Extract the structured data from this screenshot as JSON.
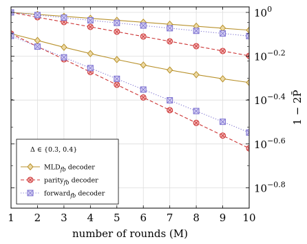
{
  "chart_data": {
    "type": "line",
    "x": [
      1,
      2,
      3,
      4,
      5,
      6,
      7,
      8,
      9,
      10
    ],
    "xlabel": "number of rounds (M)",
    "ylabel": "1 − 2P̄",
    "xlim": [
      1,
      10
    ],
    "ylim_log10": [
      -0.9,
      0.0
    ],
    "y_scale": "log10",
    "x_ticks": [
      "1",
      "2",
      "3",
      "4",
      "5",
      "6",
      "7",
      "8",
      "9",
      "10"
    ],
    "y_ticks": [
      {
        "exp": 0,
        "base": "10",
        "sup": "0"
      },
      {
        "exp": -0.2,
        "base": "10",
        "sup": "−0.2"
      },
      {
        "exp": -0.4,
        "base": "10",
        "sup": "−0.4"
      },
      {
        "exp": -0.6,
        "base": "10",
        "sup": "−0.6"
      },
      {
        "exp": -0.8,
        "base": "10",
        "sup": "−0.8"
      }
    ],
    "grid": true,
    "legend_position": "bottom-left",
    "legend_title": "Δ ∈ {0.3, 0.4}",
    "legend": [
      {
        "name": "MLD",
        "sub": "fb",
        "suffix": " decoder",
        "series": "mld"
      },
      {
        "name": "parity",
        "sub": "fb",
        "suffix": " decoder",
        "series": "parity"
      },
      {
        "name": "forward",
        "sub": "fb",
        "suffix": " decoder",
        "series": "forward"
      }
    ],
    "series": [
      {
        "key": "mld",
        "delta": 0.3,
        "style": "solid",
        "marker": "diamond",
        "color": "#b8912b",
        "log10_values": [
          0.0,
          -0.009,
          -0.018,
          -0.027,
          -0.036,
          -0.045,
          -0.054,
          -0.063,
          -0.072,
          -0.081
        ]
      },
      {
        "key": "parity",
        "delta": 0.3,
        "style": "dashed",
        "marker": "circle-x",
        "color": "#cc3333",
        "log10_values": [
          0.0,
          -0.022,
          -0.044,
          -0.066,
          -0.088,
          -0.11,
          -0.132,
          -0.154,
          -0.176,
          -0.198
        ]
      },
      {
        "key": "forward",
        "delta": 0.3,
        "style": "dotted",
        "marker": "square-x",
        "color": "#7b70cf",
        "log10_values": [
          0.0,
          -0.012,
          -0.024,
          -0.036,
          -0.048,
          -0.06,
          -0.072,
          -0.084,
          -0.096,
          -0.108
        ]
      },
      {
        "key": "mld",
        "delta": 0.4,
        "style": "solid",
        "marker": "diamond",
        "color": "#b8912b",
        "log10_values": [
          -0.097,
          -0.128,
          -0.159,
          -0.188,
          -0.215,
          -0.24,
          -0.263,
          -0.284,
          -0.303,
          -0.32
        ]
      },
      {
        "key": "parity",
        "delta": 0.4,
        "style": "dashed",
        "marker": "circle-x",
        "color": "#cc3333",
        "log10_values": [
          -0.097,
          -0.156,
          -0.214,
          -0.272,
          -0.33,
          -0.388,
          -0.446,
          -0.504,
          -0.562,
          -0.62
        ]
      },
      {
        "key": "forward",
        "delta": 0.4,
        "style": "dotted",
        "marker": "square-x",
        "color": "#7b70cf",
        "log10_values": [
          -0.107,
          -0.156,
          -0.205,
          -0.254,
          -0.303,
          -0.352,
          -0.401,
          -0.45,
          -0.499,
          -0.548
        ]
      }
    ]
  }
}
